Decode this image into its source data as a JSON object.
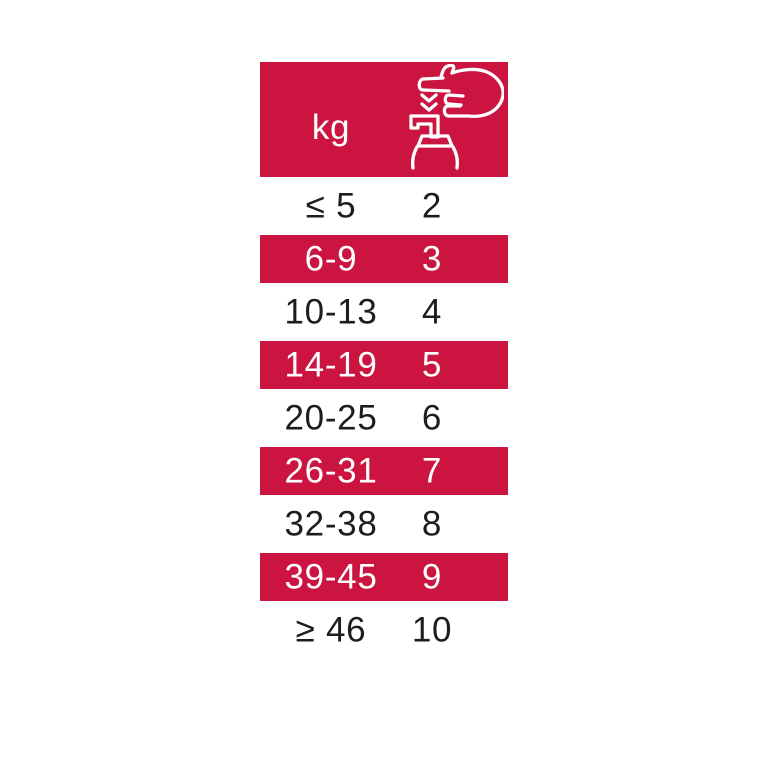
{
  "page": {
    "background": "#FFFFFF"
  },
  "colors": {
    "accent": "#CB1440",
    "ink": "#1D1D1B",
    "header_text": "#FFFFFF"
  },
  "table": {
    "header": {
      "weight_unit_label": "kg",
      "dose_icon": "hand-press-pump-icon"
    },
    "rows": [
      {
        "weight_kg": "≤ 5",
        "pumps": "2",
        "highlight": false
      },
      {
        "weight_kg": "6-9",
        "pumps": "3",
        "highlight": true
      },
      {
        "weight_kg": "10-13",
        "pumps": "4",
        "highlight": false
      },
      {
        "weight_kg": "14-19",
        "pumps": "5",
        "highlight": true
      },
      {
        "weight_kg": "20-25",
        "pumps": "6",
        "highlight": false
      },
      {
        "weight_kg": "26-31",
        "pumps": "7",
        "highlight": true
      },
      {
        "weight_kg": "32-38",
        "pumps": "8",
        "highlight": false
      },
      {
        "weight_kg": "39-45",
        "pumps": "9",
        "highlight": true
      },
      {
        "weight_kg": "≥ 46",
        "pumps": "10",
        "highlight": false
      }
    ]
  },
  "chart_data": {
    "type": "table",
    "title": "",
    "columns": [
      "weight (kg)",
      "pump presses (hand-press-pump icon)"
    ],
    "rows": [
      [
        "≤ 5",
        "2"
      ],
      [
        "6-9",
        "3"
      ],
      [
        "10-13",
        "4"
      ],
      [
        "14-19",
        "5"
      ],
      [
        "20-25",
        "6"
      ],
      [
        "26-31",
        "7"
      ],
      [
        "32-38",
        "8"
      ],
      [
        "39-45",
        "9"
      ],
      [
        "≥ 46",
        "10"
      ]
    ],
    "highlighted_row_indices": [
      1,
      3,
      5,
      7
    ],
    "layout": {
      "header_background": "#CB1440",
      "highlight_background": "#CB1440",
      "plain_row_background": "#FFFFFF",
      "grid": false
    }
  }
}
